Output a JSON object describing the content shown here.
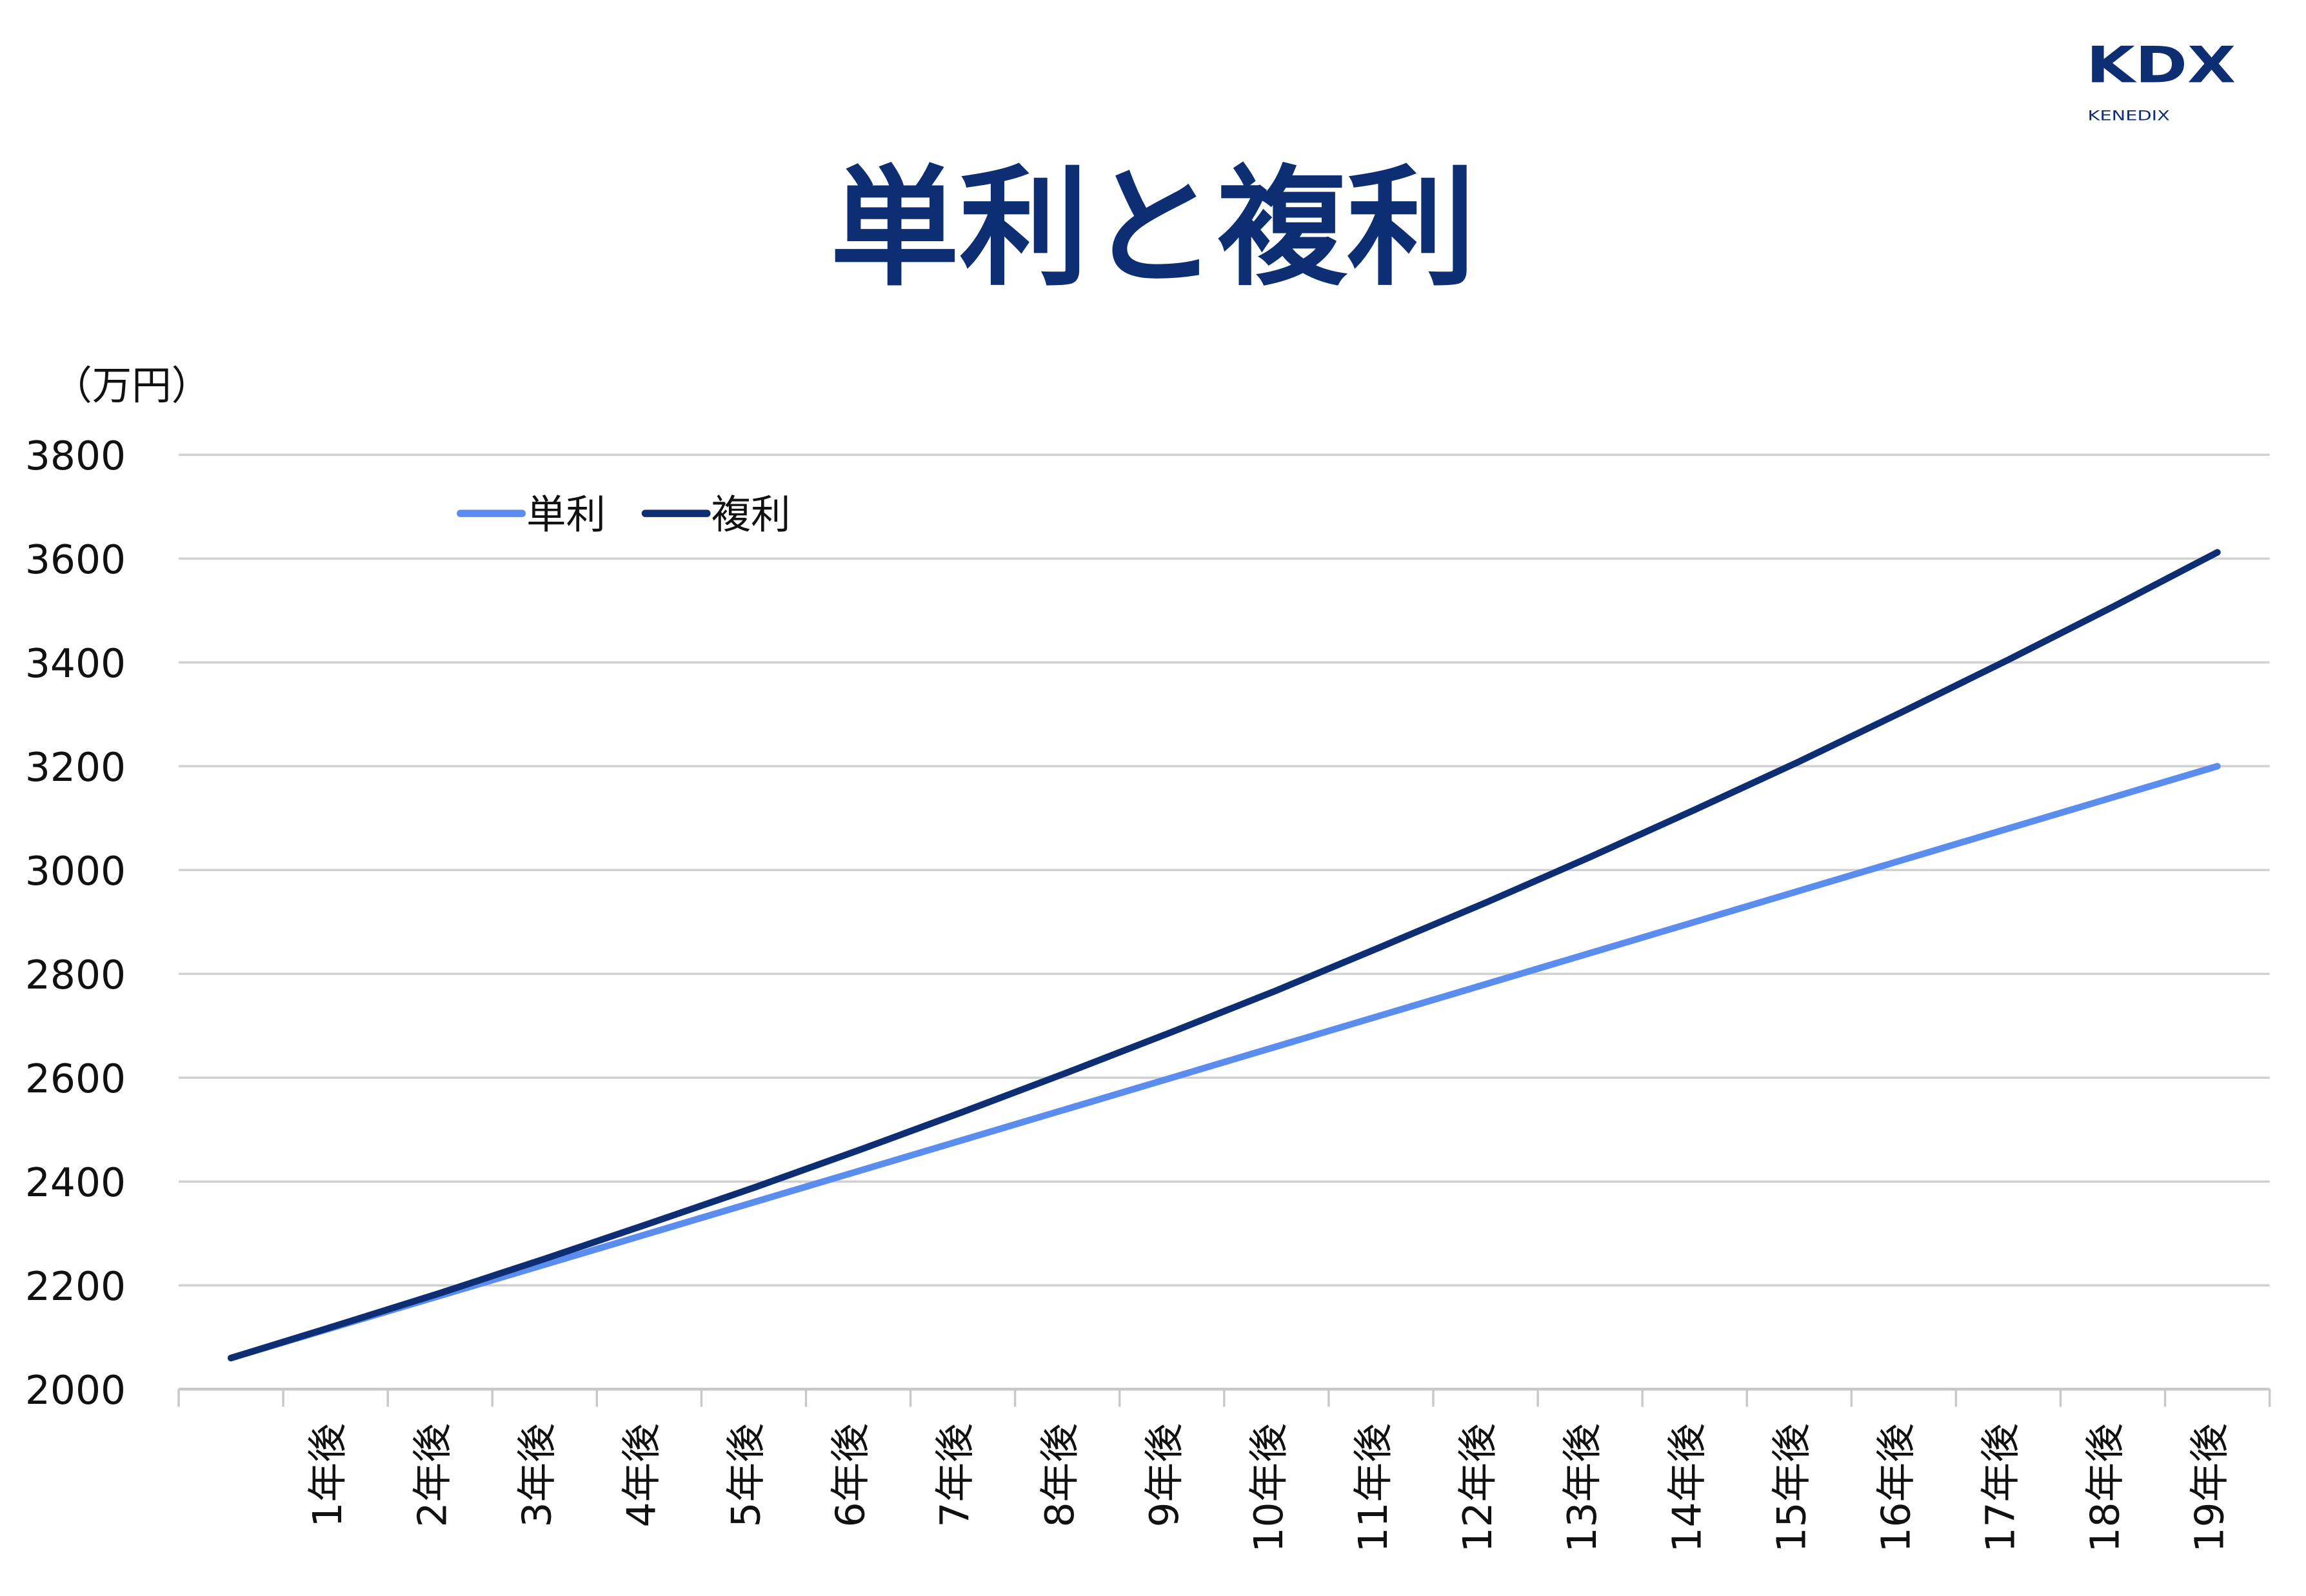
{
  "logo": {
    "mark": "KDX",
    "sub": "KENEDIX"
  },
  "chart_data": {
    "type": "line",
    "title": "単利と複利",
    "unit_label": "（万円）",
    "ylim": [
      2000,
      3800
    ],
    "yticks": [
      2000,
      2200,
      2400,
      2600,
      2800,
      3000,
      3200,
      3400,
      3600,
      3800
    ],
    "grid": true,
    "legend_position": "top-left",
    "categories": [
      "",
      "1年後",
      "2年後",
      "3年後",
      "4年後",
      "5年後",
      "6年後",
      "7年後",
      "8年後",
      "9年後",
      "10年後",
      "11年後",
      "12年後",
      "13年後",
      "14年後",
      "15年後",
      "16年後",
      "17年後",
      "18年後",
      "19年後"
    ],
    "series": [
      {
        "name": "単利",
        "color": "#5b8def",
        "values": [
          2060,
          2120,
          2180,
          2240,
          2300,
          2360,
          2420,
          2480,
          2540,
          2600,
          2660,
          2720,
          2780,
          2840,
          2900,
          2960,
          3020,
          3080,
          3140,
          3200
        ]
      },
      {
        "name": "複利",
        "color": "#0d2e73",
        "values": [
          2060,
          2122,
          2185,
          2251,
          2319,
          2388,
          2460,
          2534,
          2610,
          2688,
          2768,
          2852,
          2937,
          3025,
          3116,
          3209,
          3306,
          3405,
          3507,
          3612
        ]
      }
    ]
  }
}
